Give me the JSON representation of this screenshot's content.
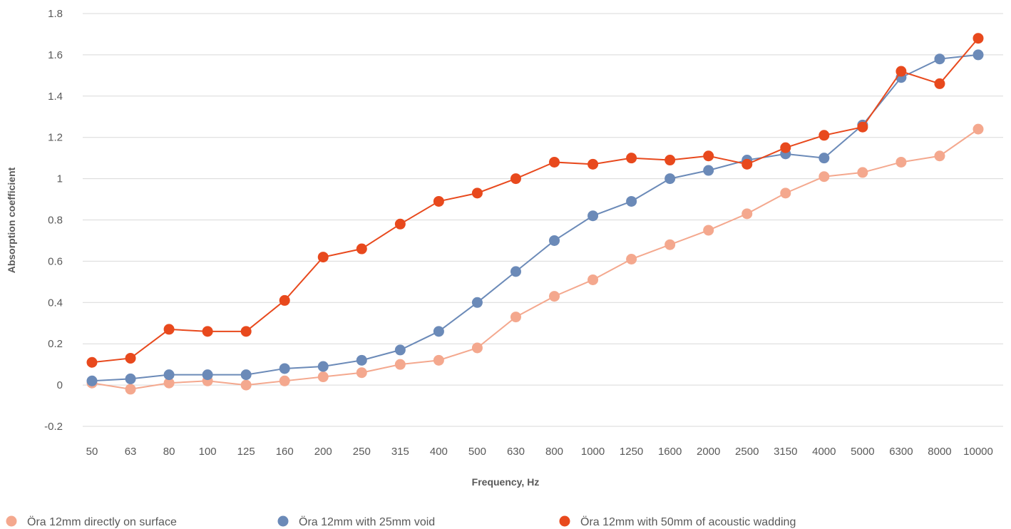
{
  "chart_data": {
    "type": "line",
    "xlabel": "Frequency, Hz",
    "ylabel": "Absorption coefficient",
    "ylim": [
      -0.2,
      1.8
    ],
    "y_ticks": [
      "-0.2",
      "0",
      "0.2",
      "0.4",
      "0.6",
      "0.8",
      "1",
      "1.2",
      "1.4",
      "1.6",
      "1.8"
    ],
    "grid": "horizontal",
    "legend_position": "bottom",
    "categories": [
      "50",
      "63",
      "80",
      "100",
      "125",
      "160",
      "200",
      "250",
      "315",
      "400",
      "500",
      "630",
      "800",
      "1000",
      "1250",
      "1600",
      "2000",
      "2500",
      "3150",
      "4000",
      "5000",
      "6300",
      "8000",
      "10000"
    ],
    "series": [
      {
        "name": "Öra 12mm directly on surface",
        "color": "#f4a88e",
        "values": [
          0.01,
          -0.02,
          0.01,
          0.02,
          0.0,
          0.02,
          0.04,
          0.06,
          0.1,
          0.12,
          0.18,
          0.33,
          0.43,
          0.51,
          0.61,
          0.68,
          0.75,
          0.83,
          0.93,
          1.01,
          1.03,
          1.08,
          1.11,
          1.24
        ]
      },
      {
        "name": "Öra 12mm with 25mm void",
        "color": "#6b8ab8",
        "values": [
          0.02,
          0.03,
          0.05,
          0.05,
          0.05,
          0.08,
          0.09,
          0.12,
          0.17,
          0.26,
          0.4,
          0.55,
          0.7,
          0.82,
          0.89,
          1.0,
          1.04,
          1.09,
          1.12,
          1.1,
          1.26,
          1.49,
          1.58,
          1.6
        ]
      },
      {
        "name": "Öra 12mm with 50mm of acoustic wadding",
        "color": "#e8491d",
        "values": [
          0.11,
          0.13,
          0.27,
          0.26,
          0.26,
          0.41,
          0.62,
          0.66,
          0.78,
          0.89,
          0.93,
          1.0,
          1.08,
          1.07,
          1.1,
          1.09,
          1.11,
          1.07,
          1.15,
          1.21,
          1.25,
          1.52,
          1.46,
          1.68
        ]
      }
    ]
  }
}
